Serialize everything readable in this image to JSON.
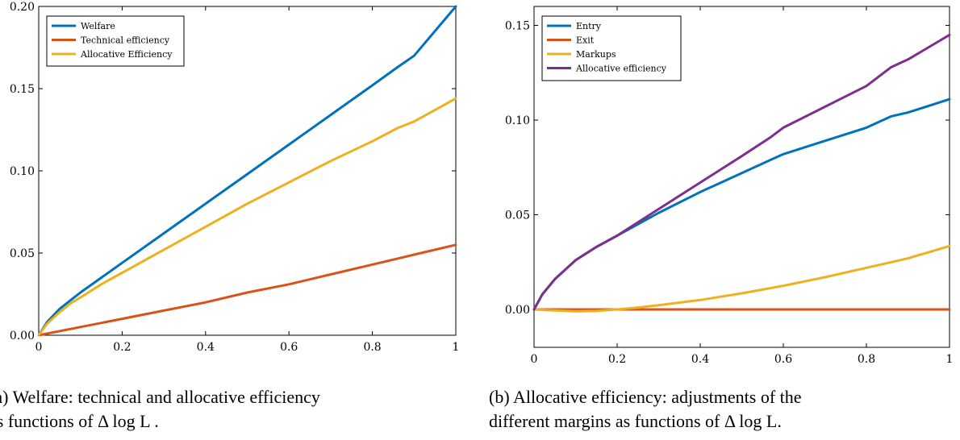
{
  "chart_data": [
    {
      "type": "line",
      "xlim": [
        0,
        1
      ],
      "ylim": [
        0,
        0.2
      ],
      "xticks": [
        "0",
        "0.2",
        "0.4",
        "0.6",
        "0.8",
        "1"
      ],
      "yticks": [
        "0.00",
        "0.05",
        "0.10",
        "0.15",
        "0.20"
      ],
      "grid": false,
      "legend": "top-left",
      "caption": "(a) Welfare: technical and allocative efficiency",
      "caption_line2": "as functions of Δ log L .",
      "series": [
        {
          "name": "Welfare",
          "color": "#0072BD",
          "x": [
            0,
            0.02,
            0.05,
            0.08,
            0.1,
            0.15,
            0.2,
            0.3,
            0.4,
            0.5,
            0.6,
            0.7,
            0.8,
            0.86,
            0.9,
            1.0
          ],
          "y": [
            0,
            0.008,
            0.016,
            0.022,
            0.026,
            0.035,
            0.044,
            0.062,
            0.08,
            0.098,
            0.116,
            0.134,
            0.152,
            0.163,
            0.17,
            0.2
          ]
        },
        {
          "name": "Technical efficiency",
          "color": "#D95319",
          "x": [
            0,
            0.1,
            0.2,
            0.3,
            0.4,
            0.5,
            0.6,
            0.7,
            0.8,
            0.9,
            1.0
          ],
          "y": [
            0,
            0.005,
            0.01,
            0.015,
            0.02,
            0.026,
            0.031,
            0.037,
            0.043,
            0.049,
            0.055
          ]
        },
        {
          "name": "Allocative Efficiency",
          "color": "#EDB120",
          "x": [
            0,
            0.02,
            0.05,
            0.08,
            0.1,
            0.15,
            0.2,
            0.3,
            0.4,
            0.5,
            0.6,
            0.7,
            0.8,
            0.86,
            0.9,
            1.0
          ],
          "y": [
            0,
            0.007,
            0.014,
            0.02,
            0.023,
            0.031,
            0.038,
            0.052,
            0.066,
            0.08,
            0.093,
            0.106,
            0.118,
            0.126,
            0.13,
            0.144
          ]
        }
      ]
    },
    {
      "type": "line",
      "xlim": [
        0,
        1
      ],
      "ylim": [
        -0.02,
        0.16
      ],
      "xticks": [
        "0",
        "0.2",
        "0.4",
        "0.6",
        "0.8",
        "1"
      ],
      "yticks": [
        "0.00",
        "0.05",
        "0.10",
        "0.15"
      ],
      "grid": false,
      "legend": "top-left",
      "caption": "(b) Allocative efficiency: adjustments of the",
      "caption_line2": "different margins as functions of Δ log L.",
      "series": [
        {
          "name": "Entry",
          "color": "#0072BD",
          "x": [
            0,
            0.02,
            0.05,
            0.08,
            0.1,
            0.15,
            0.2,
            0.3,
            0.4,
            0.5,
            0.57,
            0.6,
            0.7,
            0.8,
            0.86,
            0.9,
            1.0
          ],
          "y": [
            0,
            0.008,
            0.016,
            0.022,
            0.026,
            0.033,
            0.039,
            0.051,
            0.062,
            0.072,
            0.079,
            0.082,
            0.089,
            0.096,
            0.102,
            0.104,
            0.111
          ]
        },
        {
          "name": "Exit",
          "color": "#D95319",
          "x": [
            0,
            0.2,
            0.4,
            0.6,
            0.8,
            1.0
          ],
          "y": [
            0,
            0,
            0,
            0,
            0,
            0
          ]
        },
        {
          "name": "Markups",
          "color": "#EDB120",
          "x": [
            0,
            0.05,
            0.1,
            0.15,
            0.2,
            0.25,
            0.3,
            0.4,
            0.5,
            0.6,
            0.7,
            0.8,
            0.86,
            0.9,
            1.0
          ],
          "y": [
            0,
            -0.0005,
            -0.001,
            -0.0008,
            0,
            0.001,
            0.0022,
            0.005,
            0.0085,
            0.0125,
            0.017,
            0.022,
            0.025,
            0.027,
            0.0335
          ]
        },
        {
          "name": "Allocative efficiency",
          "color": "#7E2F8E",
          "x": [
            0,
            0.02,
            0.05,
            0.08,
            0.1,
            0.15,
            0.2,
            0.3,
            0.4,
            0.5,
            0.57,
            0.6,
            0.7,
            0.8,
            0.86,
            0.9,
            1.0
          ],
          "y": [
            0,
            0.008,
            0.016,
            0.022,
            0.026,
            0.033,
            0.039,
            0.053,
            0.067,
            0.081,
            0.091,
            0.096,
            0.107,
            0.118,
            0.128,
            0.132,
            0.145
          ]
        }
      ]
    }
  ]
}
